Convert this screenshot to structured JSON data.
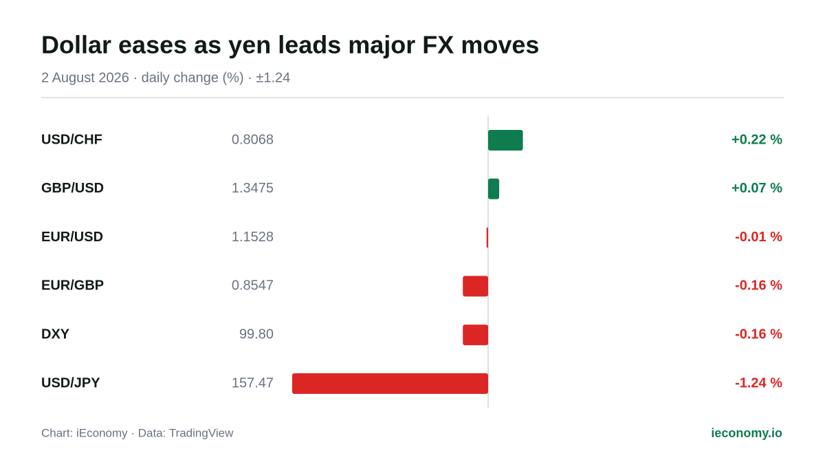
{
  "chart_data": {
    "type": "bar",
    "orientation": "horizontal",
    "title": "Dollar eases as yen leads major FX moves",
    "subtitle": "2 August 2026 · daily change (%) · ±1.24",
    "categories": [
      "USD/CHF",
      "GBP/USD",
      "EUR/USD",
      "EUR/GBP",
      "DXY",
      "USD/JPY"
    ],
    "prices": [
      "0.8068",
      "1.3475",
      "1.1528",
      "0.8547",
      "99.80",
      "157.47"
    ],
    "values": [
      0.22,
      0.07,
      -0.01,
      -0.16,
      -0.16,
      -1.24
    ],
    "value_labels": [
      "+0.22 %",
      "+0.07 %",
      "-0.01 %",
      "-0.16 %",
      "-0.16 %",
      "-1.24 %"
    ],
    "positive_color": "#0e7c4f",
    "negative_color": "#dc2626",
    "xlim": [
      -1.24,
      1.24
    ],
    "source": "Chart: iEconomy · Data: TradingView",
    "brand": "ieconomy.io"
  }
}
